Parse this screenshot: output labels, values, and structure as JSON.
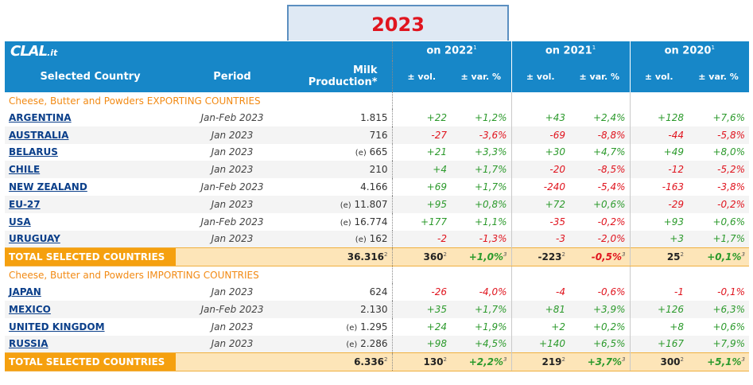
{
  "year_title": "2023",
  "logo": {
    "main": "CLAL",
    "suffix": ".it"
  },
  "headers": {
    "country": "Selected Country",
    "period": "Period",
    "production": "Milk Production*",
    "groups": [
      "on 2022",
      "on 2021",
      "on 2020"
    ],
    "group_sup": "1",
    "vol": "± vol.",
    "var": "± var. %"
  },
  "sections": [
    {
      "title": "Cheese, Butter and Powders EXPORTING COUNTRIES",
      "rows": [
        {
          "country": "ARGENTINA",
          "period": "Jan-Feb 2023",
          "est": "",
          "prod": "1.815",
          "v22": "+22",
          "p22": "+1,2%",
          "v21": "+43",
          "p21": "+2,4%",
          "v20": "+128",
          "p20": "+7,6%"
        },
        {
          "country": "AUSTRALIA",
          "period": "Jan 2023",
          "est": "",
          "prod": "716",
          "v22": "-27",
          "p22": "-3,6%",
          "v21": "-69",
          "p21": "-8,8%",
          "v20": "-44",
          "p20": "-5,8%"
        },
        {
          "country": "BELARUS",
          "period": "Jan 2023",
          "est": "(e)",
          "prod": "665",
          "v22": "+21",
          "p22": "+3,3%",
          "v21": "+30",
          "p21": "+4,7%",
          "v20": "+49",
          "p20": "+8,0%"
        },
        {
          "country": "CHILE",
          "period": "Jan 2023",
          "est": "",
          "prod": "210",
          "v22": "+4",
          "p22": "+1,7%",
          "v21": "-20",
          "p21": "-8,5%",
          "v20": "-12",
          "p20": "-5,2%"
        },
        {
          "country": "NEW ZEALAND",
          "period": "Jan-Feb 2023",
          "est": "",
          "prod": "4.166",
          "v22": "+69",
          "p22": "+1,7%",
          "v21": "-240",
          "p21": "-5,4%",
          "v20": "-163",
          "p20": "-3,8%"
        },
        {
          "country": "EU-27",
          "period": "Jan 2023",
          "est": "(e)",
          "prod": "11.807",
          "v22": "+95",
          "p22": "+0,8%",
          "v21": "+72",
          "p21": "+0,6%",
          "v20": "-29",
          "p20": "-0,2%"
        },
        {
          "country": "USA",
          "period": "Jan-Feb 2023",
          "est": "(e)",
          "prod": "16.774",
          "v22": "+177",
          "p22": "+1,1%",
          "v21": "-35",
          "p21": "-0,2%",
          "v20": "+93",
          "p20": "+0,6%"
        },
        {
          "country": "URUGUAY",
          "period": "Jan 2023",
          "est": "(e)",
          "prod": "162",
          "v22": "-2",
          "p22": "-1,3%",
          "v21": "-3",
          "p21": "-2,0%",
          "v20": "+3",
          "p20": "+1,7%"
        }
      ],
      "total": {
        "label": "TOTAL SELECTED COUNTRIES",
        "prod": "36.316",
        "v22": "360",
        "p22": "+1,0%",
        "v21": "-223",
        "p21": "-0,5%",
        "v20": "25",
        "p20": "+0,1%",
        "sup_v": "2",
        "sup_p": "3",
        "sup_prod": "2"
      }
    },
    {
      "title": "Cheese, Butter and Powders IMPORTING COUNTRIES",
      "rows": [
        {
          "country": "JAPAN",
          "period": "Jan 2023",
          "est": "",
          "prod": "624",
          "v22": "-26",
          "p22": "-4,0%",
          "v21": "-4",
          "p21": "-0,6%",
          "v20": "-1",
          "p20": "-0,1%"
        },
        {
          "country": "MEXICO",
          "period": "Jan-Feb 2023",
          "est": "",
          "prod": "2.130",
          "v22": "+35",
          "p22": "+1,7%",
          "v21": "+81",
          "p21": "+3,9%",
          "v20": "+126",
          "p20": "+6,3%"
        },
        {
          "country": "UNITED KINGDOM",
          "period": "Jan 2023",
          "est": "(e)",
          "prod": "1.295",
          "v22": "+24",
          "p22": "+1,9%",
          "v21": "+2",
          "p21": "+0,2%",
          "v20": "+8",
          "p20": "+0,6%"
        },
        {
          "country": "RUSSIA",
          "period": "Jan 2023",
          "est": "(e)",
          "prod": "2.286",
          "v22": "+98",
          "p22": "+4,5%",
          "v21": "+140",
          "p21": "+6,5%",
          "v20": "+167",
          "p20": "+7,9%"
        }
      ],
      "total": {
        "label": "TOTAL SELECTED COUNTRIES",
        "prod": "6.336",
        "v22": "130",
        "p22": "+2,2%",
        "v21": "219",
        "p21": "+3,7%",
        "v20": "300",
        "p20": "+5,1%",
        "sup_v": "2",
        "sup_p": "3",
        "sup_prod": "2"
      }
    }
  ]
}
